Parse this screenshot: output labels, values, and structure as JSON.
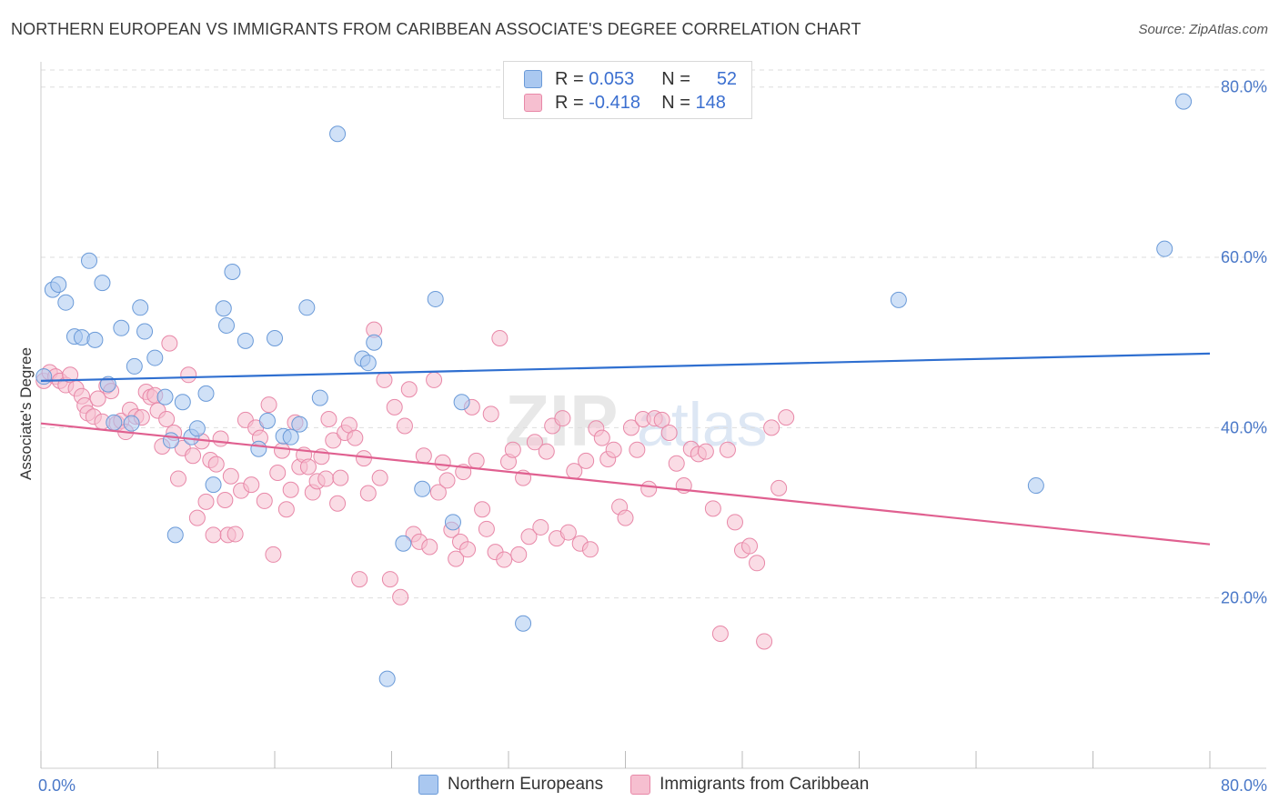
{
  "header": {
    "title": "NORTHERN EUROPEAN VS IMMIGRANTS FROM CARIBBEAN ASSOCIATE'S DEGREE CORRELATION CHART",
    "source": "Source: ZipAtlas.com"
  },
  "watermark": {
    "zip": "ZIP",
    "atlas": "atlas"
  },
  "legend": {
    "row1": {
      "r_label": "R =",
      "r_value": "0.053",
      "n_label": "N =",
      "n_value": "52"
    },
    "row2": {
      "r_label": "R =",
      "r_value": "-0.418",
      "n_label": "N =",
      "n_value": "148"
    }
  },
  "bottom_legend": {
    "series1": "Northern Europeans",
    "series2": "Immigrants from Caribbean"
  },
  "colors": {
    "blue_fill": "#aac8f0",
    "blue_stroke": "#6a9ad8",
    "blue_line": "#2f6fd0",
    "pink_fill": "#f6bfd0",
    "pink_stroke": "#e888a8",
    "pink_line": "#e06090",
    "grid": "#dddddd",
    "tick_label": "#4a78c8"
  },
  "chart_data": {
    "type": "scatter",
    "title": "NORTHERN EUROPEAN VS IMMIGRANTS FROM CARIBBEAN ASSOCIATE'S DEGREE CORRELATION CHART",
    "xlabel": "",
    "ylabel": "Associate's Degree",
    "xlim": [
      0,
      80
    ],
    "ylim": [
      0,
      82
    ],
    "x_tick_labels": [
      "0.0%",
      "80.0%"
    ],
    "y_ticks": [
      20,
      40,
      60,
      80
    ],
    "y_tick_labels": [
      "20.0%",
      "40.0%",
      "60.0%",
      "80.0%"
    ],
    "grid": true,
    "legend_position": "top-center",
    "series": [
      {
        "name": "Northern Europeans",
        "color": "#aac8f0",
        "trend": [
          [
            0,
            45.5
          ],
          [
            80,
            48.7
          ]
        ],
        "points": [
          [
            0.2,
            46.0
          ],
          [
            0.8,
            56.2
          ],
          [
            1.2,
            56.8
          ],
          [
            1.7,
            54.7
          ],
          [
            2.3,
            50.7
          ],
          [
            2.8,
            50.6
          ],
          [
            3.3,
            59.6
          ],
          [
            3.7,
            50.3
          ],
          [
            4.2,
            57.0
          ],
          [
            4.6,
            45.1
          ],
          [
            5.0,
            40.6
          ],
          [
            5.5,
            51.7
          ],
          [
            6.2,
            40.5
          ],
          [
            6.4,
            47.2
          ],
          [
            6.8,
            54.1
          ],
          [
            7.1,
            51.3
          ],
          [
            7.8,
            48.2
          ],
          [
            8.5,
            43.6
          ],
          [
            8.9,
            38.5
          ],
          [
            9.2,
            27.4
          ],
          [
            9.7,
            43.0
          ],
          [
            10.3,
            38.9
          ],
          [
            10.7,
            39.9
          ],
          [
            11.3,
            44.0
          ],
          [
            11.8,
            33.3
          ],
          [
            12.5,
            54.0
          ],
          [
            12.7,
            52.0
          ],
          [
            13.1,
            58.3
          ],
          [
            14.0,
            50.2
          ],
          [
            14.9,
            37.5
          ],
          [
            15.5,
            40.8
          ],
          [
            16.0,
            50.5
          ],
          [
            16.6,
            39.0
          ],
          [
            17.1,
            38.9
          ],
          [
            17.7,
            40.4
          ],
          [
            18.2,
            54.1
          ],
          [
            19.1,
            43.5
          ],
          [
            20.3,
            74.5
          ],
          [
            22.0,
            48.1
          ],
          [
            22.4,
            47.6
          ],
          [
            22.8,
            50.0
          ],
          [
            23.7,
            10.5
          ],
          [
            24.8,
            26.4
          ],
          [
            26.1,
            32.8
          ],
          [
            27.0,
            55.1
          ],
          [
            28.2,
            28.9
          ],
          [
            28.8,
            43.0
          ],
          [
            33.0,
            17.0
          ],
          [
            58.7,
            55.0
          ],
          [
            68.1,
            33.2
          ],
          [
            76.9,
            61.0
          ],
          [
            78.2,
            78.3
          ]
        ]
      },
      {
        "name": "Immigrants from Caribbean",
        "color": "#f6bfd0",
        "trend": [
          [
            0,
            40.5
          ],
          [
            80,
            26.3
          ]
        ],
        "points": [
          [
            0.2,
            45.5
          ],
          [
            0.6,
            46.5
          ],
          [
            1.0,
            46.0
          ],
          [
            1.3,
            45.5
          ],
          [
            1.7,
            45.0
          ],
          [
            2.0,
            46.2
          ],
          [
            2.4,
            44.6
          ],
          [
            2.8,
            43.7
          ],
          [
            3.0,
            42.6
          ],
          [
            3.2,
            41.7
          ],
          [
            3.6,
            41.3
          ],
          [
            3.9,
            43.4
          ],
          [
            4.2,
            40.7
          ],
          [
            4.5,
            44.9
          ],
          [
            4.8,
            44.3
          ],
          [
            5.2,
            40.5
          ],
          [
            5.5,
            40.8
          ],
          [
            5.8,
            39.5
          ],
          [
            6.1,
            42.1
          ],
          [
            6.5,
            41.3
          ],
          [
            6.9,
            41.2
          ],
          [
            7.2,
            44.2
          ],
          [
            7.5,
            43.6
          ],
          [
            7.8,
            43.8
          ],
          [
            8.0,
            42.0
          ],
          [
            8.3,
            37.8
          ],
          [
            8.6,
            41.0
          ],
          [
            8.8,
            49.9
          ],
          [
            9.1,
            39.4
          ],
          [
            9.4,
            34.0
          ],
          [
            9.7,
            37.6
          ],
          [
            10.1,
            46.2
          ],
          [
            10.4,
            36.7
          ],
          [
            10.7,
            29.4
          ],
          [
            11.0,
            38.4
          ],
          [
            11.3,
            31.3
          ],
          [
            11.6,
            36.2
          ],
          [
            11.8,
            27.4
          ],
          [
            12.0,
            35.7
          ],
          [
            12.3,
            38.7
          ],
          [
            12.6,
            31.5
          ],
          [
            12.8,
            27.4
          ],
          [
            13.0,
            34.3
          ],
          [
            13.3,
            27.5
          ],
          [
            13.7,
            32.6
          ],
          [
            14.0,
            40.9
          ],
          [
            14.4,
            33.3
          ],
          [
            14.7,
            40.0
          ],
          [
            15.0,
            38.8
          ],
          [
            15.3,
            31.4
          ],
          [
            15.6,
            42.7
          ],
          [
            15.9,
            25.1
          ],
          [
            16.2,
            34.7
          ],
          [
            16.5,
            37.3
          ],
          [
            16.8,
            30.4
          ],
          [
            17.1,
            32.7
          ],
          [
            17.4,
            40.6
          ],
          [
            17.7,
            35.4
          ],
          [
            18.0,
            36.8
          ],
          [
            18.3,
            35.4
          ],
          [
            18.6,
            32.4
          ],
          [
            18.9,
            33.7
          ],
          [
            19.2,
            36.6
          ],
          [
            19.5,
            34.0
          ],
          [
            19.7,
            41.0
          ],
          [
            20.0,
            38.5
          ],
          [
            20.3,
            31.1
          ],
          [
            20.5,
            34.1
          ],
          [
            20.8,
            39.4
          ],
          [
            21.1,
            40.3
          ],
          [
            21.5,
            38.8
          ],
          [
            21.8,
            22.2
          ],
          [
            22.1,
            36.4
          ],
          [
            22.4,
            32.3
          ],
          [
            22.8,
            51.5
          ],
          [
            23.2,
            34.1
          ],
          [
            23.5,
            45.6
          ],
          [
            23.9,
            22.2
          ],
          [
            24.2,
            42.4
          ],
          [
            24.6,
            20.1
          ],
          [
            24.9,
            40.2
          ],
          [
            25.2,
            44.5
          ],
          [
            25.5,
            27.5
          ],
          [
            25.9,
            26.6
          ],
          [
            26.2,
            36.7
          ],
          [
            26.6,
            26.0
          ],
          [
            26.9,
            45.6
          ],
          [
            27.2,
            32.4
          ],
          [
            27.5,
            35.9
          ],
          [
            27.8,
            33.8
          ],
          [
            28.1,
            28.0
          ],
          [
            28.4,
            24.6
          ],
          [
            28.7,
            26.6
          ],
          [
            28.9,
            34.8
          ],
          [
            29.2,
            25.7
          ],
          [
            29.5,
            42.4
          ],
          [
            29.8,
            36.1
          ],
          [
            30.2,
            30.4
          ],
          [
            30.5,
            28.1
          ],
          [
            30.8,
            41.6
          ],
          [
            31.1,
            25.4
          ],
          [
            31.4,
            50.5
          ],
          [
            31.7,
            24.5
          ],
          [
            32.0,
            36.0
          ],
          [
            32.3,
            37.4
          ],
          [
            32.7,
            25.1
          ],
          [
            33.0,
            34.1
          ],
          [
            33.4,
            27.2
          ],
          [
            33.8,
            38.3
          ],
          [
            34.2,
            28.3
          ],
          [
            34.6,
            37.2
          ],
          [
            35.0,
            40.2
          ],
          [
            35.3,
            27.0
          ],
          [
            35.7,
            41.1
          ],
          [
            36.1,
            27.7
          ],
          [
            36.5,
            34.9
          ],
          [
            36.9,
            26.4
          ],
          [
            37.3,
            36.1
          ],
          [
            37.6,
            25.7
          ],
          [
            38.0,
            39.9
          ],
          [
            38.4,
            38.8
          ],
          [
            38.8,
            36.3
          ],
          [
            39.2,
            37.4
          ],
          [
            39.6,
            30.7
          ],
          [
            40.0,
            29.4
          ],
          [
            40.4,
            40.0
          ],
          [
            40.8,
            37.4
          ],
          [
            41.2,
            41.0
          ],
          [
            41.6,
            32.8
          ],
          [
            42.0,
            41.1
          ],
          [
            42.5,
            40.9
          ],
          [
            43.0,
            39.4
          ],
          [
            43.5,
            35.8
          ],
          [
            44.0,
            33.2
          ],
          [
            44.5,
            37.5
          ],
          [
            45.0,
            36.9
          ],
          [
            45.5,
            37.2
          ],
          [
            46.0,
            30.5
          ],
          [
            46.5,
            15.8
          ],
          [
            47.0,
            37.4
          ],
          [
            47.5,
            28.9
          ],
          [
            48.0,
            25.6
          ],
          [
            48.5,
            26.1
          ],
          [
            49.0,
            24.1
          ],
          [
            49.5,
            14.9
          ],
          [
            50.0,
            40.0
          ],
          [
            50.5,
            32.9
          ],
          [
            51.0,
            41.2
          ]
        ]
      }
    ]
  }
}
